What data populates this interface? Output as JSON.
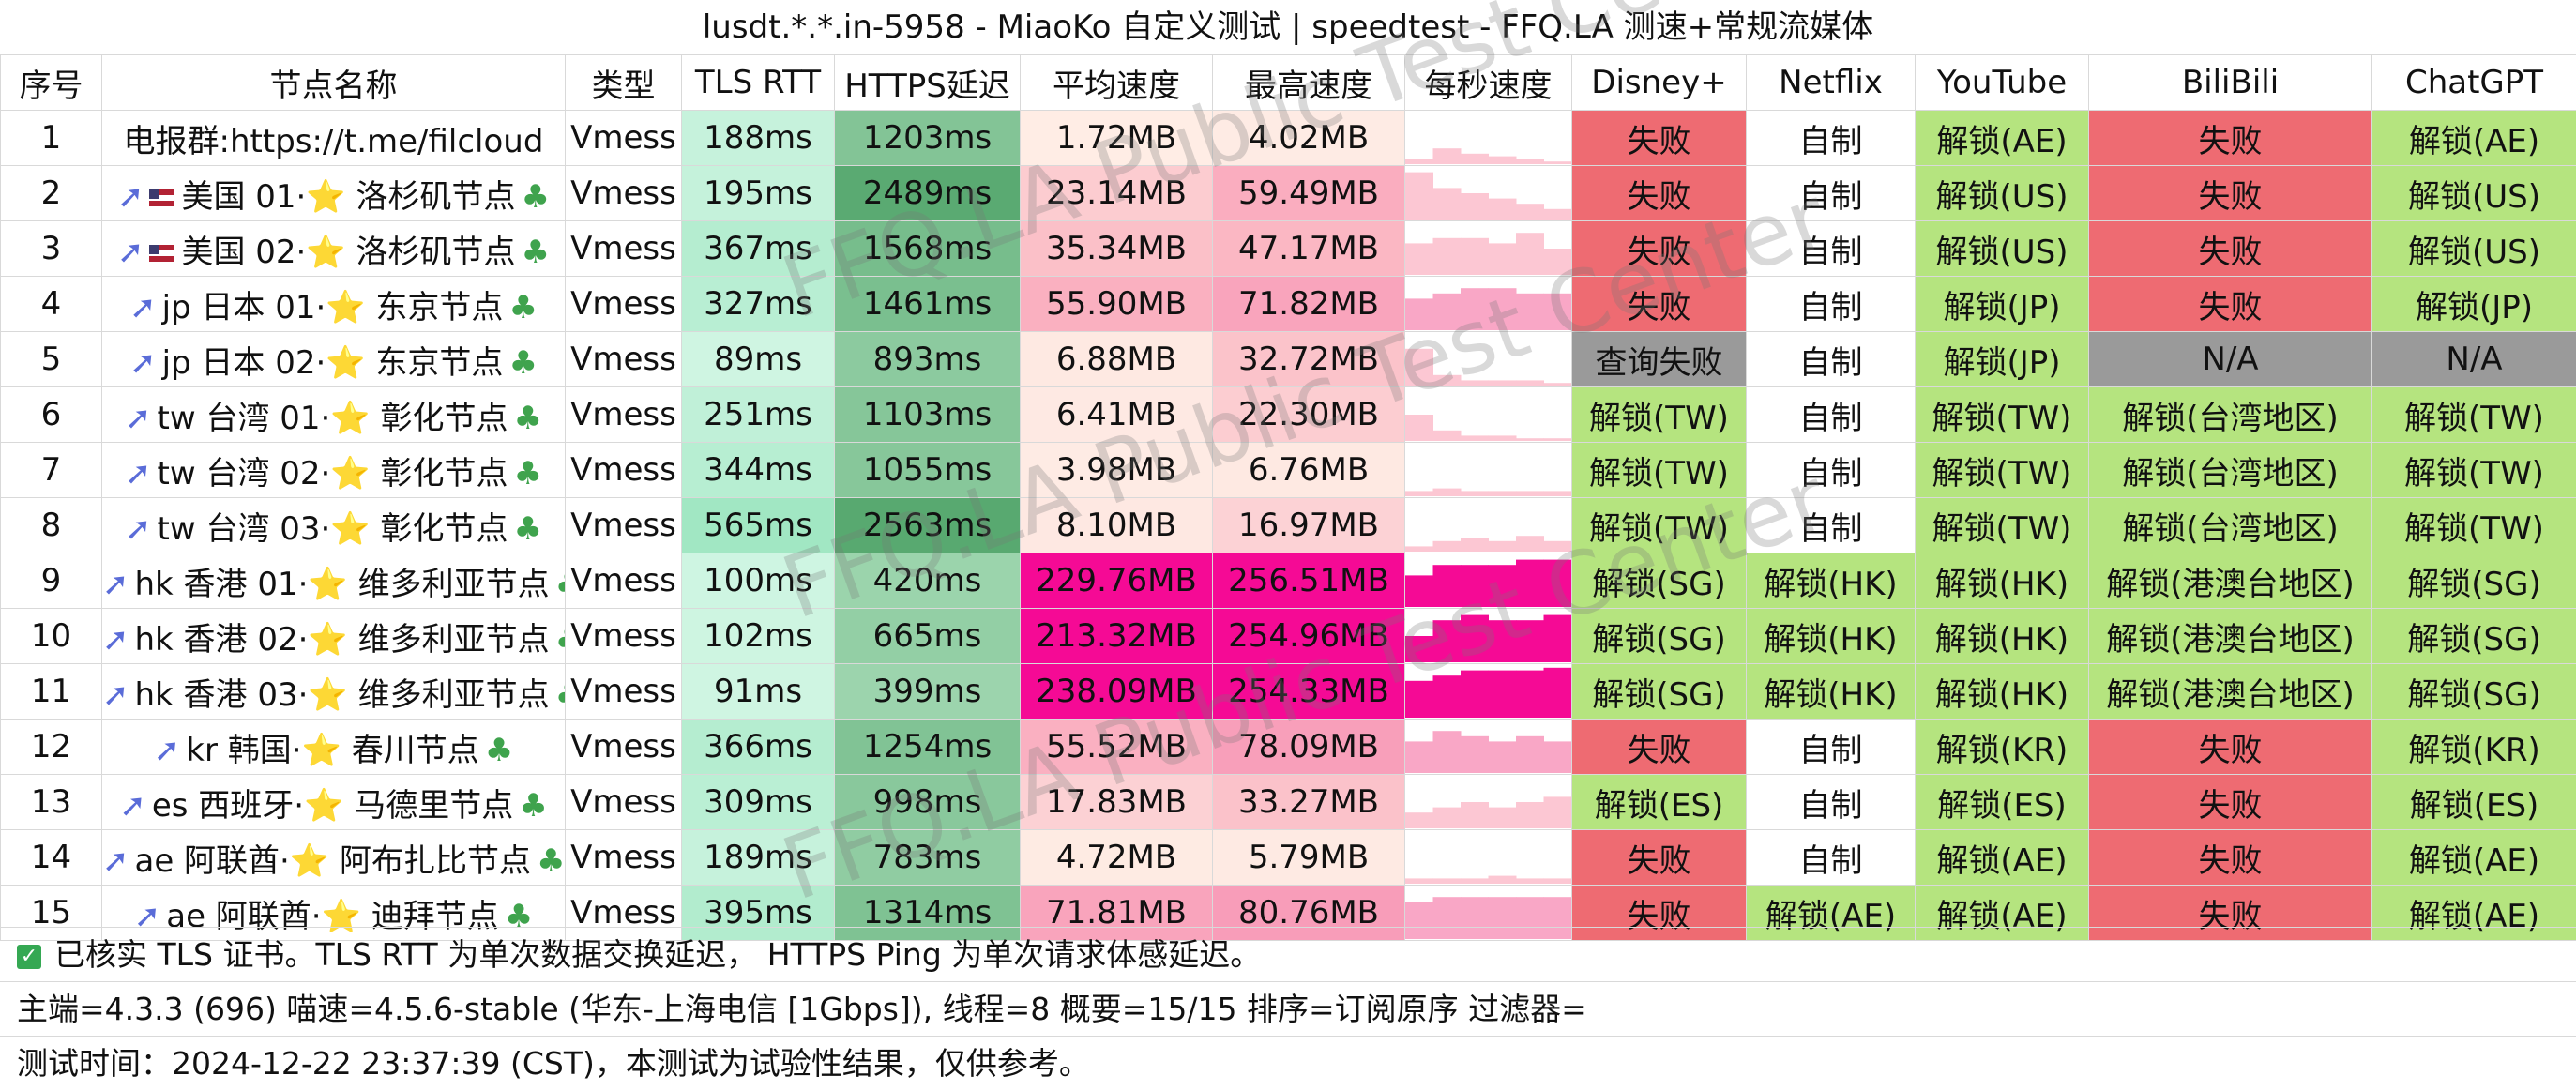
{
  "title": "lusdt.*.*.in-5958 - MiaoKo 自定义测试 | speedtest - FFQ.LA 测速+常规流媒体",
  "headers": [
    "序号",
    "节点名称",
    "类型",
    "TLS RTT",
    "HTTPS延迟",
    "平均速度",
    "最高速度",
    "每秒速度",
    "Disney+",
    "Netflix",
    "YouTube",
    "BiliBili",
    "ChatGPT"
  ],
  "rows": [
    {
      "idx": "1",
      "name": "电报群:https://t.me/filcloud",
      "type": "Vmess",
      "tls": "188ms",
      "https": "1203ms",
      "avg": "1.72MB",
      "max": "4.02MB",
      "disney": "失败",
      "netflix": "自制",
      "youtube": "解锁(AE)",
      "bili": "失败",
      "gpt": "解锁(AE)",
      "spark": [
        0.1,
        0.3,
        0.2,
        0.15,
        0.1,
        0.05
      ]
    },
    {
      "idx": "2",
      "name": "美国 01·⭐ 洛杉矶节点",
      "type": "Vmess",
      "tls": "195ms",
      "https": "2489ms",
      "avg": "23.14MB",
      "max": "59.49MB",
      "disney": "失败",
      "netflix": "自制",
      "youtube": "解锁(US)",
      "bili": "失败",
      "gpt": "解锁(US)",
      "spark": [
        0.9,
        0.6,
        0.5,
        0.4,
        0.3,
        0.2
      ]
    },
    {
      "idx": "3",
      "name": "美国 02·⭐ 洛杉矶节点",
      "type": "Vmess",
      "tls": "367ms",
      "https": "1568ms",
      "avg": "35.34MB",
      "max": "47.17MB",
      "disney": "失败",
      "netflix": "自制",
      "youtube": "解锁(US)",
      "bili": "失败",
      "gpt": "解锁(US)",
      "spark": [
        0.6,
        0.7,
        0.7,
        0.6,
        0.8,
        0.5
      ]
    },
    {
      "idx": "4",
      "name": "jp 日本 01·⭐ 东京节点",
      "type": "Vmess",
      "tls": "327ms",
      "https": "1461ms",
      "avg": "55.90MB",
      "max": "71.82MB",
      "disney": "失败",
      "netflix": "自制",
      "youtube": "解锁(JP)",
      "bili": "失败",
      "gpt": "解锁(JP)",
      "spark": [
        0.6,
        0.7,
        0.8,
        0.8,
        0.7,
        0.7
      ]
    },
    {
      "idx": "5",
      "name": "jp 日本 02·⭐ 东京节点",
      "type": "Vmess",
      "tls": "89ms",
      "https": "893ms",
      "avg": "6.88MB",
      "max": "32.72MB",
      "disney": "查询失败",
      "netflix": "自制",
      "youtube": "解锁(JP)",
      "bili": "N/A",
      "gpt": "N/A",
      "spark": [
        0.7,
        0.2,
        0.1,
        0.1,
        0.1,
        0.05
      ]
    },
    {
      "idx": "6",
      "name": "tw 台湾 01·⭐ 彰化节点",
      "type": "Vmess",
      "tls": "251ms",
      "https": "1103ms",
      "avg": "6.41MB",
      "max": "22.30MB",
      "disney": "解锁(TW)",
      "netflix": "自制",
      "youtube": "解锁(TW)",
      "bili": "解锁(台湾地区)",
      "gpt": "解锁(TW)",
      "spark": [
        0.5,
        0.2,
        0.1,
        0.1,
        0.05,
        0.05
      ]
    },
    {
      "idx": "7",
      "name": "tw 台湾 02·⭐ 彰化节点",
      "type": "Vmess",
      "tls": "344ms",
      "https": "1055ms",
      "avg": "3.98MB",
      "max": "6.76MB",
      "disney": "解锁(TW)",
      "netflix": "自制",
      "youtube": "解锁(TW)",
      "bili": "解锁(台湾地区)",
      "gpt": "解锁(TW)",
      "spark": [
        0.1,
        0.15,
        0.1,
        0.1,
        0.1,
        0.1
      ]
    },
    {
      "idx": "8",
      "name": "tw 台湾 03·⭐ 彰化节点",
      "type": "Vmess",
      "tls": "565ms",
      "https": "2563ms",
      "avg": "8.10MB",
      "max": "16.97MB",
      "disney": "解锁(TW)",
      "netflix": "自制",
      "youtube": "解锁(TW)",
      "bili": "解锁(台湾地区)",
      "gpt": "解锁(TW)",
      "spark": [
        0.1,
        0.2,
        0.25,
        0.2,
        0.3,
        0.2
      ]
    },
    {
      "idx": "9",
      "name": "hk 香港 01·⭐ 维多利亚节点",
      "type": "Vmess",
      "tls": "100ms",
      "https": "420ms",
      "avg": "229.76MB",
      "max": "256.51MB",
      "disney": "解锁(SG)",
      "netflix": "解锁(HK)",
      "youtube": "解锁(HK)",
      "bili": "解锁(港澳台地区)",
      "gpt": "解锁(SG)",
      "spark": [
        0.6,
        0.8,
        0.8,
        0.8,
        0.9,
        0.9
      ]
    },
    {
      "idx": "10",
      "name": "hk 香港 02·⭐ 维多利亚节点",
      "type": "Vmess",
      "tls": "102ms",
      "https": "665ms",
      "avg": "213.32MB",
      "max": "254.96MB",
      "disney": "解锁(SG)",
      "netflix": "解锁(HK)",
      "youtube": "解锁(HK)",
      "bili": "解锁(港澳台地区)",
      "gpt": "解锁(SG)",
      "spark": [
        0.5,
        0.8,
        0.9,
        0.8,
        0.8,
        0.9
      ]
    },
    {
      "idx": "11",
      "name": "hk 香港 03·⭐ 维多利亚节点",
      "type": "Vmess",
      "tls": "91ms",
      "https": "399ms",
      "avg": "238.09MB",
      "max": "254.33MB",
      "disney": "解锁(SG)",
      "netflix": "解锁(HK)",
      "youtube": "解锁(HK)",
      "bili": "解锁(港澳台地区)",
      "gpt": "解锁(SG)",
      "spark": [
        0.7,
        0.8,
        0.9,
        0.9,
        0.9,
        0.95
      ]
    },
    {
      "idx": "12",
      "name": "kr 韩国·⭐ 春川节点",
      "type": "Vmess",
      "tls": "366ms",
      "https": "1254ms",
      "avg": "55.52MB",
      "max": "78.09MB",
      "disney": "失败",
      "netflix": "自制",
      "youtube": "解锁(KR)",
      "bili": "失败",
      "gpt": "解锁(KR)",
      "spark": [
        0.6,
        0.8,
        0.7,
        0.6,
        0.7,
        0.6
      ]
    },
    {
      "idx": "13",
      "name": "es 西班牙·⭐ 马德里节点",
      "type": "Vmess",
      "tls": "309ms",
      "https": "998ms",
      "avg": "17.83MB",
      "max": "33.27MB",
      "disney": "解锁(ES)",
      "netflix": "自制",
      "youtube": "解锁(ES)",
      "bili": "失败",
      "gpt": "解锁(ES)",
      "spark": [
        0.3,
        0.4,
        0.5,
        0.4,
        0.5,
        0.6
      ]
    },
    {
      "idx": "14",
      "name": "ae 阿联酋·⭐ 阿布扎比节点",
      "type": "Vmess",
      "tls": "189ms",
      "https": "783ms",
      "avg": "4.72MB",
      "max": "5.79MB",
      "disney": "失败",
      "netflix": "自制",
      "youtube": "解锁(AE)",
      "bili": "失败",
      "gpt": "解锁(AE)",
      "spark": [
        0.1,
        0.1,
        0.1,
        0.15,
        0.1,
        0.1
      ]
    },
    {
      "idx": "15",
      "name": "ae 阿联酋·⭐ 迪拜节点",
      "type": "Vmess",
      "tls": "395ms",
      "https": "1314ms",
      "avg": "71.81MB",
      "max": "80.76MB",
      "disney": "失败",
      "netflix": "解锁(AE)",
      "youtube": "解锁(AE)",
      "bili": "失败",
      "gpt": "解锁(AE)",
      "spark": [
        0.7,
        0.8,
        0.8,
        0.8,
        0.8,
        0.8
      ]
    }
  ],
  "footer": {
    "line1": "已核实 TLS 证书。TLS RTT 为单次数据交换延迟， HTTPS Ping 为单次请求体感延迟。",
    "line2": "主端=4.3.3 (696) 喵速=4.5.6-stable (华东-上海电信 [1Gbps]), 线程=8 概要=15/15 排序=订阅原序 过滤器=",
    "line3": "测试时间：2024-12-22 23:37:39 (CST)，本测试为试验性结果，仅供参考。"
  },
  "watermark": "FFQ.LA Public Test Center",
  "colors": {
    "fail": "#ee6b72",
    "unlock": "#b5e47f",
    "na": "#9a9a9a",
    "self": "#ffffff",
    "tls_light": "#c8f5df",
    "https_dark": "#57a86f",
    "speed_low": "#fde3de",
    "speed_mid": "#fbbcc5",
    "speed_high": "#f50a95"
  }
}
